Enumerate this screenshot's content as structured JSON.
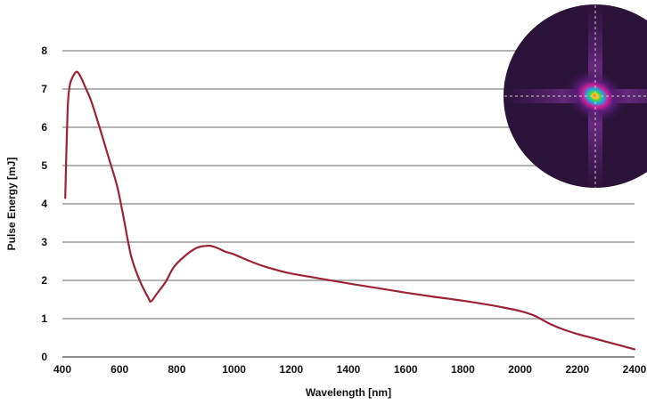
{
  "chart_data": {
    "type": "line",
    "title": "",
    "xlabel": "Wavelength [nm]",
    "ylabel": "Pulse Energy [mJ]",
    "xlim": [
      400,
      2400
    ],
    "ylim": [
      0,
      8
    ],
    "x_ticks": [
      400,
      600,
      800,
      1000,
      1200,
      1400,
      1600,
      1800,
      2000,
      2200,
      2400
    ],
    "y_ticks": [
      0,
      1,
      2,
      3,
      4,
      5,
      6,
      7,
      8
    ],
    "grid": true,
    "legend": "none",
    "series": [
      {
        "color": "#9b2335",
        "x": [
          410,
          418,
          425,
          435,
          450,
          465,
          480,
          500,
          530,
          560,
          590,
          610,
          640,
          670,
          700,
          710,
          730,
          760,
          790,
          830,
          870,
          900,
          920,
          940,
          970,
          1000,
          1050,
          1100,
          1150,
          1200,
          1300,
          1400,
          1500,
          1600,
          1700,
          1800,
          1900,
          1950,
          2000,
          2050,
          2100,
          2150,
          2200,
          2250,
          2300,
          2350,
          2400
        ],
        "y": [
          4.15,
          6.4,
          7.05,
          7.3,
          7.45,
          7.3,
          7.05,
          6.7,
          6.0,
          5.25,
          4.5,
          3.8,
          2.65,
          2.0,
          1.55,
          1.45,
          1.65,
          1.95,
          2.35,
          2.65,
          2.85,
          2.9,
          2.9,
          2.85,
          2.75,
          2.68,
          2.52,
          2.38,
          2.27,
          2.18,
          2.05,
          1.92,
          1.8,
          1.68,
          1.57,
          1.47,
          1.35,
          1.28,
          1.2,
          1.08,
          0.88,
          0.72,
          0.6,
          0.5,
          0.4,
          0.3,
          0.2
        ]
      }
    ],
    "inset": {
      "type": "heatmap",
      "shape": "circle",
      "position": "top-right",
      "description_icon": "beam-profile-icon"
    }
  }
}
